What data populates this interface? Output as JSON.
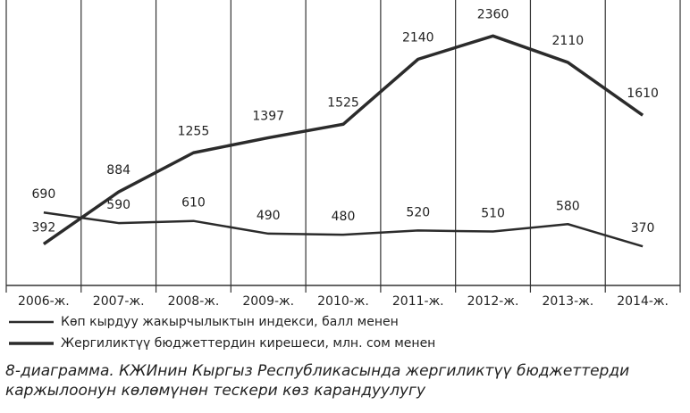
{
  "chart_data": {
    "type": "line",
    "categories": [
      "2006-ж.",
      "2007-ж.",
      "2008-ж.",
      "2009-ж.",
      "2010-ж.",
      "2011-ж.",
      "2012-ж.",
      "2013-ж.",
      "2014-ж."
    ],
    "series": [
      {
        "name": "Көп кырдуу жакырчылыктын индекси, балл менен",
        "color": "#2b2b2b",
        "width": 2.5,
        "values": [
          690,
          590,
          610,
          490,
          480,
          520,
          510,
          580,
          370
        ]
      },
      {
        "name": "Жергиликтүү бюджеттердин кирешеси, млн. сом менен",
        "color": "#2b2b2b",
        "width": 3.5,
        "values": [
          392,
          884,
          1255,
          1397,
          1525,
          2140,
          2360,
          2110,
          1610
        ]
      }
    ],
    "ylim": [
      0,
      2700
    ],
    "caption": [
      "8-диаграмма. КЖИнин Кыргыз Республикасында жергиликтүү бюджеттерди",
      "каржылоонун  көлөмүнөн тескери көз карандуулугу"
    ]
  }
}
